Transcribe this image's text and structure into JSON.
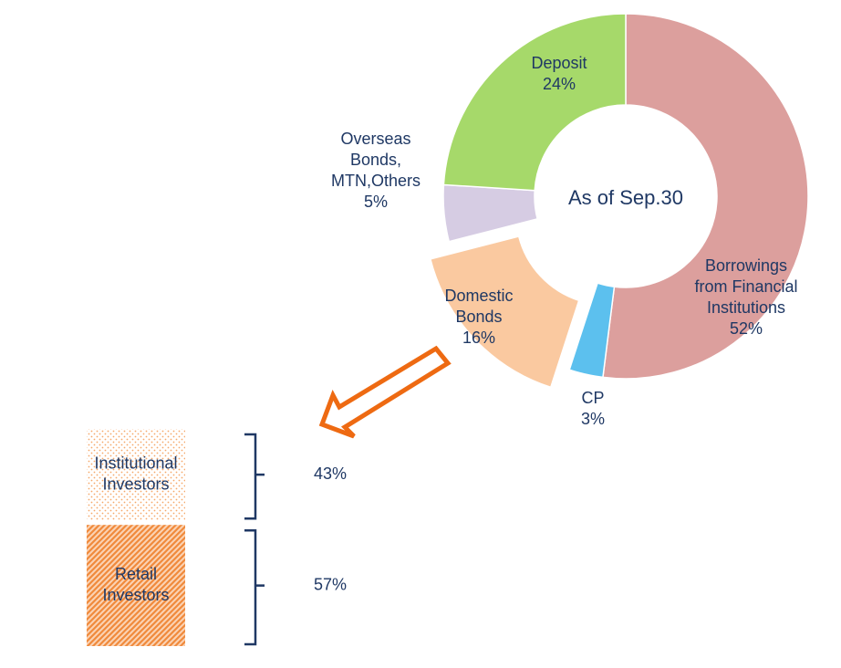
{
  "chart_data": [
    {
      "type": "donut",
      "annotation": "As of Sep.30",
      "categories": [
        [
          "Borrowings",
          "from Financial",
          "Institutions"
        ],
        [
          "CP"
        ],
        [
          "Domestic",
          "Bonds"
        ],
        [
          "Overseas",
          "Bonds,",
          "MTN,Others"
        ],
        [
          "Deposit"
        ]
      ],
      "values": [
        52,
        3,
        16,
        5,
        24
      ],
      "value_labels": [
        "52%",
        "3%",
        "16%",
        "5%",
        "24%"
      ],
      "colors": [
        "#dc9f9d",
        "#5cc0ee",
        "#fac9a0",
        "#d6cce3",
        "#a6d96a"
      ],
      "exploded": [
        false,
        false,
        true,
        false,
        false
      ]
    },
    {
      "type": "stacked_bar",
      "series": [
        {
          "name": [
            "Institutional",
            "Investors"
          ],
          "values": [
            43
          ],
          "value_labels": [
            "43%"
          ],
          "color": "#f5a86a",
          "pattern": "dots"
        },
        {
          "name": [
            "Retail",
            "Investors"
          ],
          "values": [
            57
          ],
          "value_labels": [
            "57%"
          ],
          "color": "#f08a3c",
          "pattern": "stripes"
        }
      ]
    }
  ]
}
